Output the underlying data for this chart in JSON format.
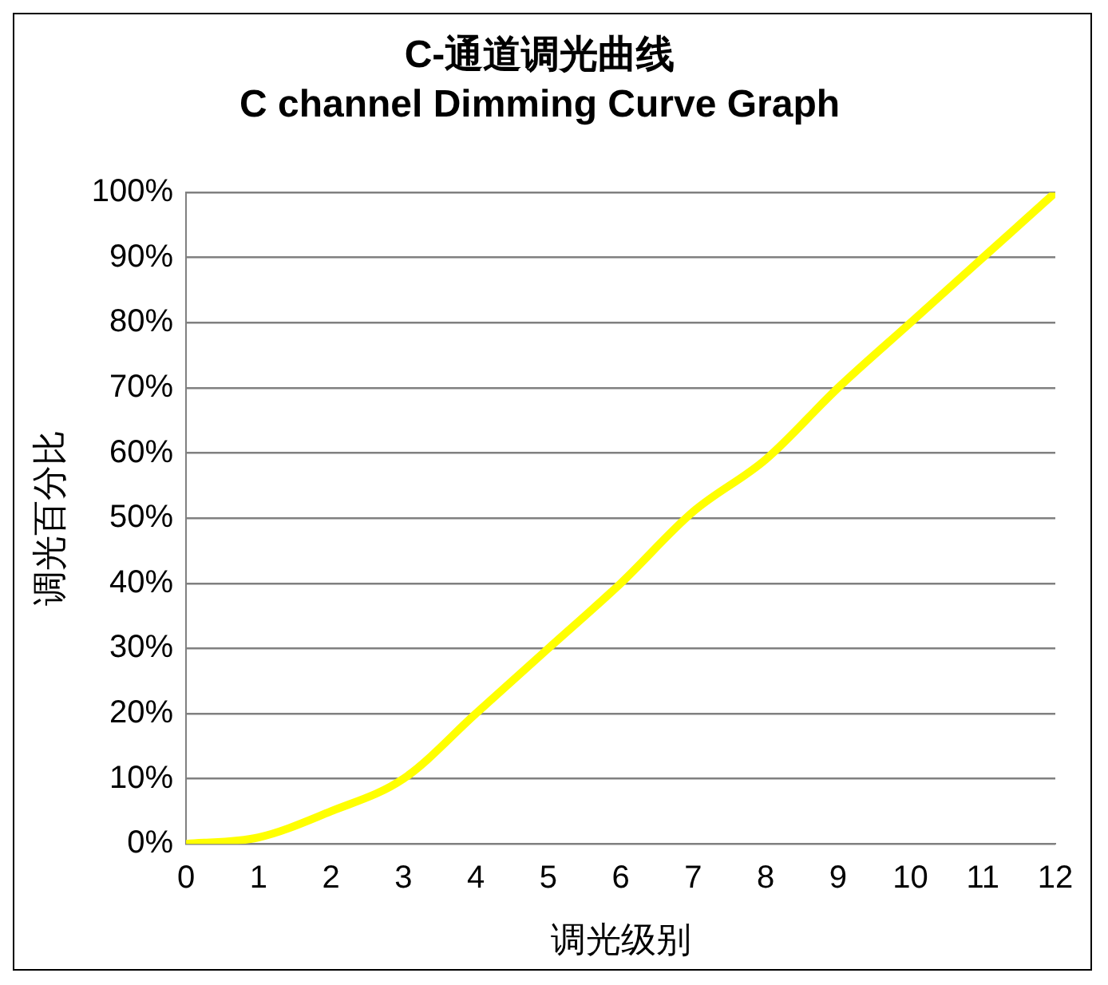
{
  "chart_data": {
    "type": "line",
    "title": "C-通道调光曲线",
    "subtitle": "C channel Dimming Curve Graph",
    "xlabel": "调光级别",
    "ylabel": "调光百分比",
    "x": [
      0,
      1,
      2,
      3,
      4,
      5,
      6,
      7,
      8,
      9,
      10,
      11,
      12
    ],
    "xlim": [
      0,
      12
    ],
    "xticks": [
      0,
      1,
      2,
      3,
      4,
      5,
      6,
      7,
      8,
      9,
      10,
      11,
      12
    ],
    "series": [
      {
        "color": "#ffff00",
        "values": [
          0,
          1,
          5,
          10,
          20,
          30,
          40,
          51,
          59,
          70,
          80,
          90,
          100
        ]
      }
    ],
    "ylim": [
      0,
      100
    ],
    "yticks": [
      {
        "value": 0,
        "label": "0%"
      },
      {
        "value": 10,
        "label": "10%"
      },
      {
        "value": 20,
        "label": "20%"
      },
      {
        "value": 30,
        "label": "30%"
      },
      {
        "value": 40,
        "label": "40%"
      },
      {
        "value": 50,
        "label": "50%"
      },
      {
        "value": 60,
        "label": "60%"
      },
      {
        "value": 70,
        "label": "70%"
      },
      {
        "value": 80,
        "label": "80%"
      },
      {
        "value": 90,
        "label": "90%"
      },
      {
        "value": 100,
        "label": "100%"
      }
    ],
    "grid": "y",
    "legend": false,
    "marker": "none",
    "line_style": "solid"
  }
}
